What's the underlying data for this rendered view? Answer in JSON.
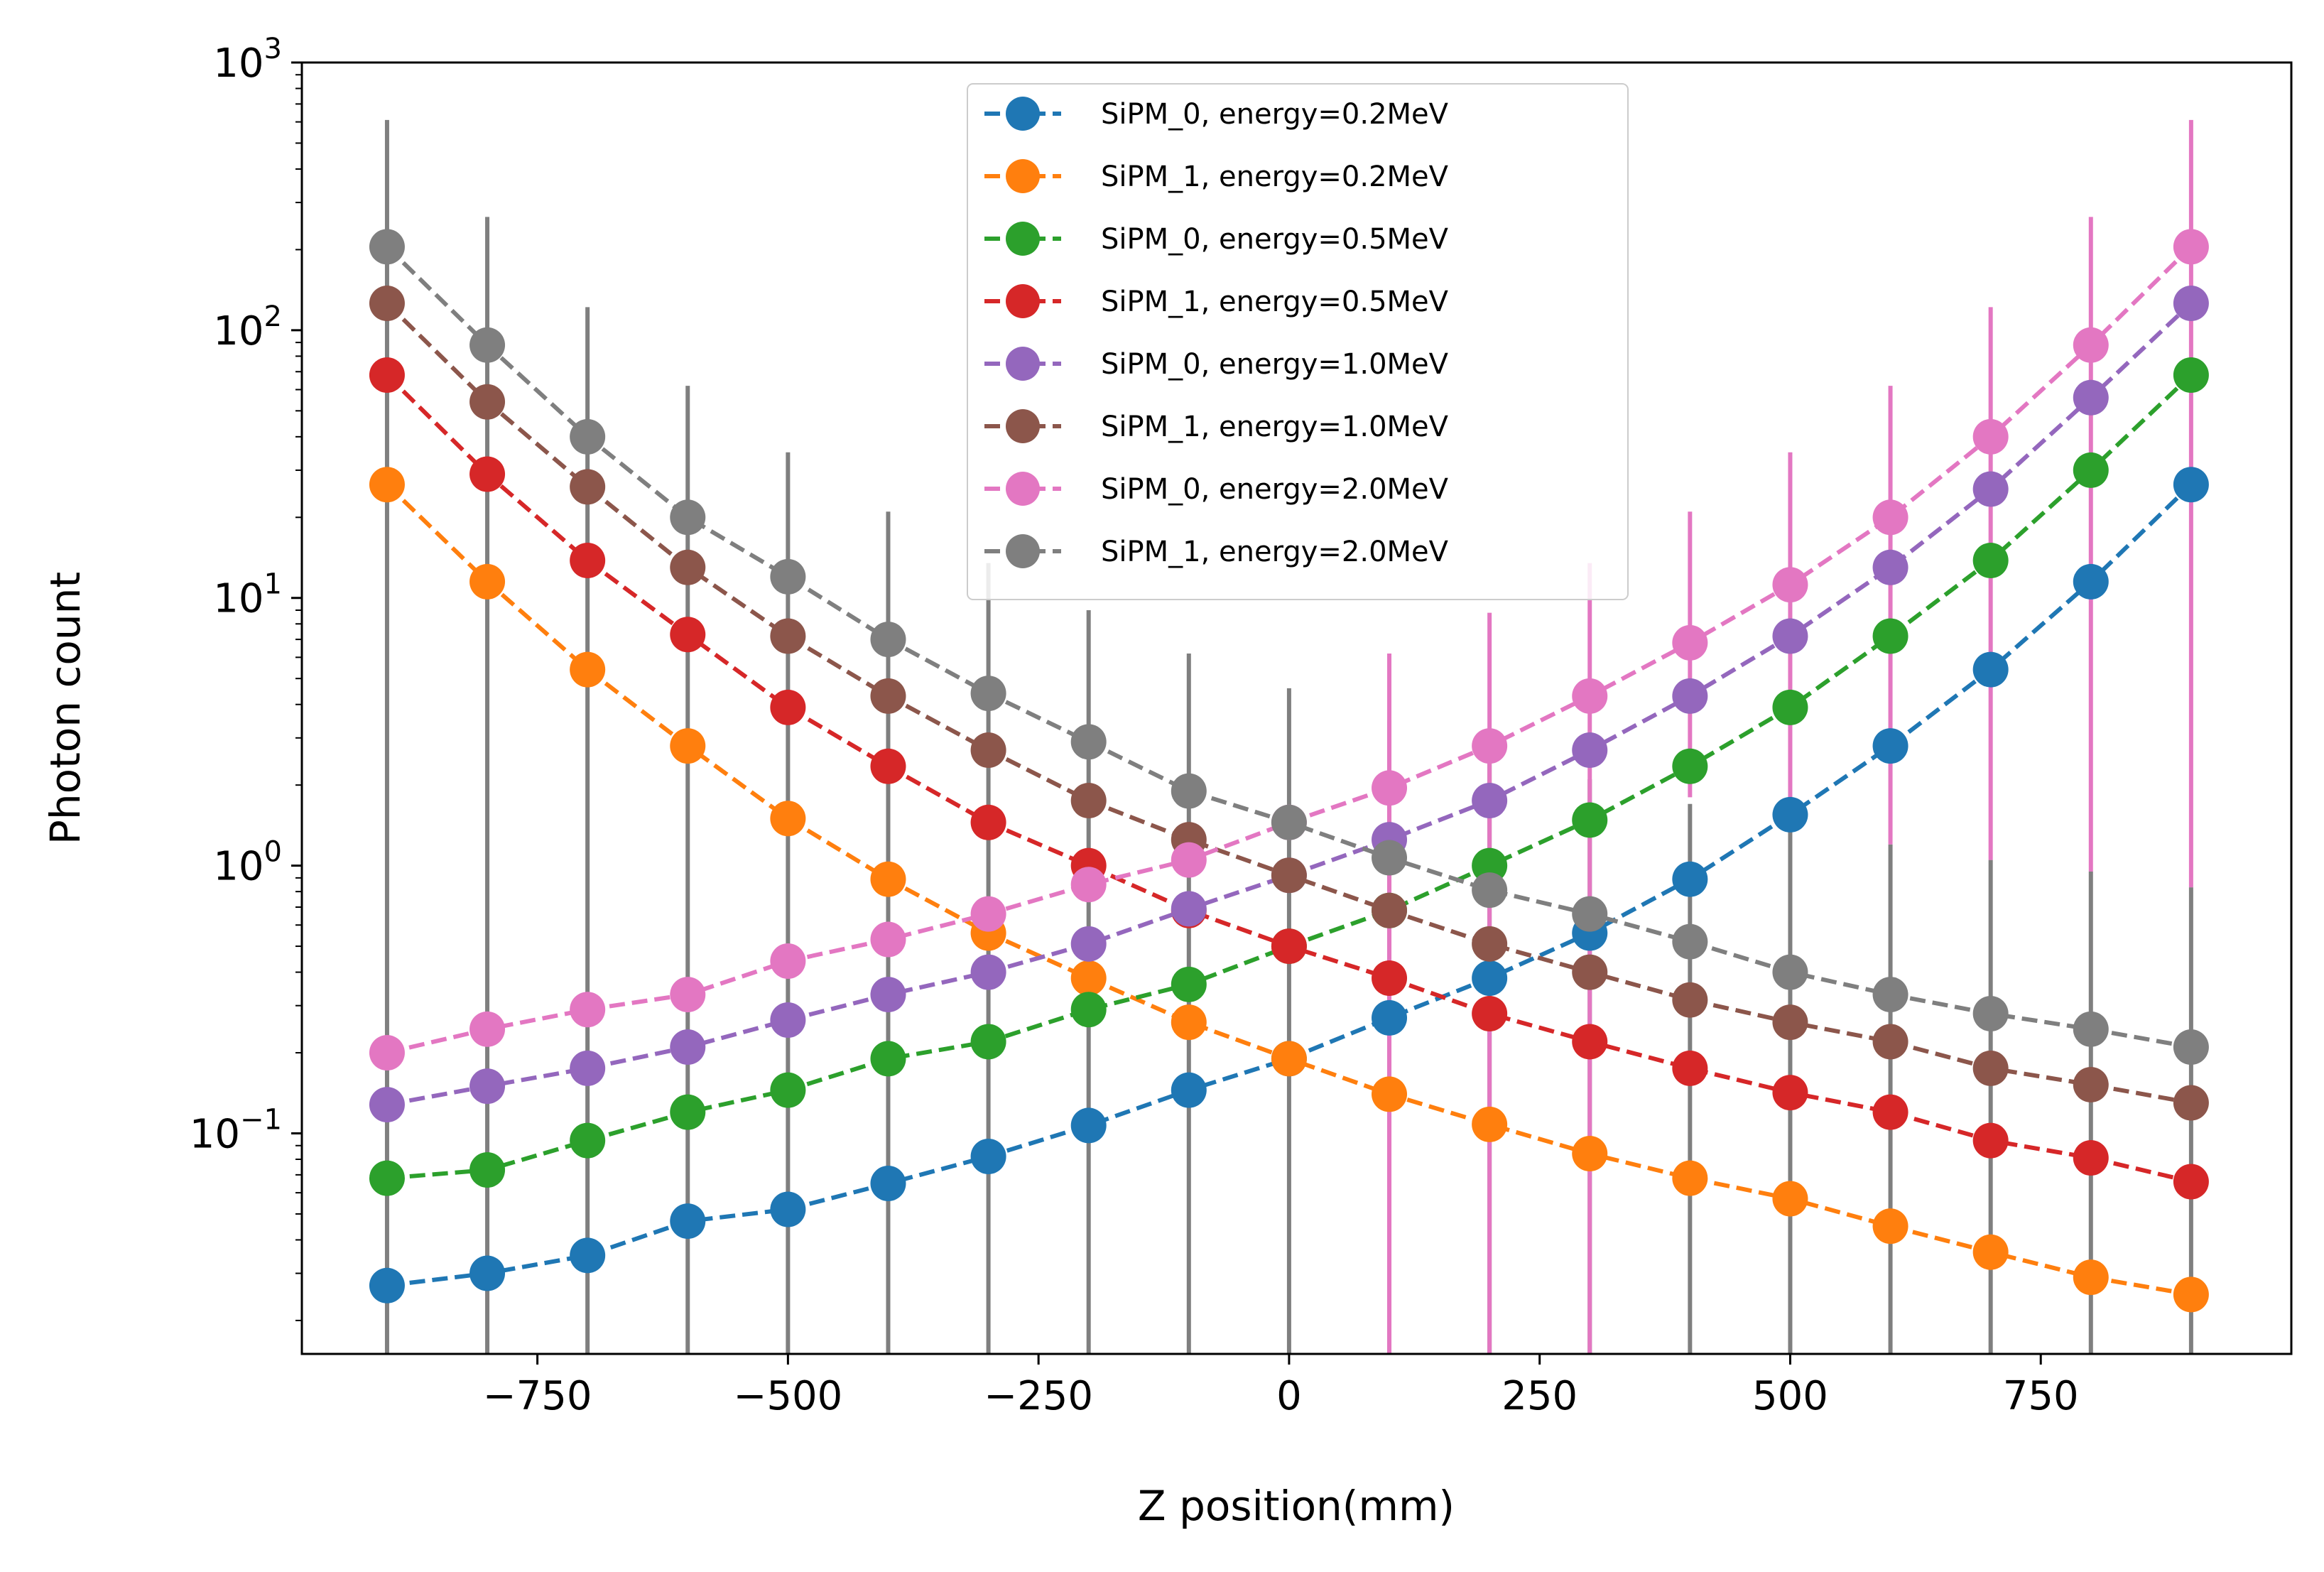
{
  "chart_data": {
    "type": "line",
    "xlabel": "Z position(mm)",
    "ylabel": "Photon count",
    "yscale": "log",
    "xlim": [
      -985,
      1000
    ],
    "ylim": [
      0.015,
      1000
    ],
    "xticks": [
      -750,
      -500,
      -250,
      0,
      250,
      500,
      750
    ],
    "xtick_labels": [
      "−750",
      "−500",
      "−250",
      "0",
      "250",
      "500",
      "750"
    ],
    "yticks": [
      {
        "value": 1000,
        "base": "10",
        "exp": "3"
      },
      {
        "value": 100,
        "base": "10",
        "exp": "2"
      },
      {
        "value": 10,
        "base": "10",
        "exp": "1"
      },
      {
        "value": 1,
        "base": "10",
        "exp": "0"
      },
      {
        "value": 0.1,
        "base": "10",
        "exp": "−1"
      }
    ],
    "grid": false,
    "legend_position": "top-center",
    "line_style": "dashed",
    "marker": "circle",
    "x": [
      -900,
      -800,
      -700,
      -600,
      -500,
      -400,
      -300,
      -200,
      -100,
      0,
      100,
      200,
      300,
      400,
      500,
      600,
      700,
      800,
      900
    ],
    "series": [
      {
        "name": "SiPM_0, energy=0.2MeV",
        "color": "#1f77b4",
        "values": [
          0.027,
          0.03,
          0.035,
          0.047,
          0.052,
          0.065,
          0.082,
          0.107,
          0.145,
          0.19,
          0.27,
          0.38,
          0.56,
          0.89,
          1.55,
          2.8,
          5.4,
          11.5,
          26.5
        ]
      },
      {
        "name": "SiPM_1, energy=0.2MeV",
        "color": "#ff7f0e",
        "values": [
          26.5,
          11.5,
          5.4,
          2.8,
          1.5,
          0.89,
          0.56,
          0.38,
          0.26,
          0.19,
          0.14,
          0.108,
          0.084,
          0.068,
          0.057,
          0.045,
          0.036,
          0.029,
          0.025
        ]
      },
      {
        "name": "SiPM_0, energy=0.5MeV",
        "color": "#2ca02c",
        "values": [
          0.068,
          0.073,
          0.094,
          0.12,
          0.145,
          0.19,
          0.22,
          0.29,
          0.36,
          0.5,
          0.68,
          1.0,
          1.48,
          2.35,
          3.9,
          7.2,
          13.8,
          30,
          68
        ]
      },
      {
        "name": "SiPM_1, energy=0.5MeV",
        "color": "#d62728",
        "values": [
          68,
          29,
          13.8,
          7.3,
          3.9,
          2.35,
          1.45,
          1.0,
          0.68,
          0.5,
          0.38,
          0.28,
          0.22,
          0.175,
          0.142,
          0.12,
          0.094,
          0.081,
          0.066
        ]
      },
      {
        "name": "SiPM_0, energy=1.0MeV",
        "color": "#9467bd",
        "values": [
          0.128,
          0.15,
          0.175,
          0.21,
          0.265,
          0.33,
          0.4,
          0.51,
          0.69,
          0.92,
          1.25,
          1.75,
          2.7,
          4.3,
          7.2,
          13,
          25.5,
          56,
          126
        ]
      },
      {
        "name": "SiPM_1, energy=1.0MeV",
        "color": "#8c564b",
        "values": [
          126,
          54,
          26,
          13,
          7.2,
          4.3,
          2.7,
          1.75,
          1.25,
          0.92,
          0.68,
          0.51,
          0.4,
          0.315,
          0.26,
          0.22,
          0.175,
          0.152,
          0.13
        ]
      },
      {
        "name": "SiPM_0, energy=2.0MeV",
        "color": "#e377c2",
        "values": [
          0.2,
          0.245,
          0.29,
          0.33,
          0.44,
          0.53,
          0.66,
          0.85,
          1.05,
          1.45,
          1.95,
          2.8,
          4.3,
          6.8,
          11.2,
          20,
          40,
          88,
          205
        ]
      },
      {
        "name": "SiPM_1, energy=2.0MeV",
        "color": "#7f7f7f",
        "values": [
          205,
          88,
          40,
          20,
          12,
          7.0,
          4.4,
          2.9,
          1.9,
          1.45,
          1.07,
          0.81,
          0.66,
          0.52,
          0.4,
          0.33,
          0.28,
          0.245,
          0.21
        ]
      }
    ],
    "error_bars": [
      {
        "series": "SiPM_1, energy=2.0MeV",
        "color": "#7f7f7f",
        "upper": [
          610,
          265,
          122,
          62,
          35,
          21,
          13.5,
          9,
          6.2,
          4.6,
          3.5,
          2.6,
          2.1,
          1.7,
          1.4,
          1.2,
          1.05,
          0.95,
          0.83
        ]
      },
      {
        "series": "SiPM_0, energy=2.0MeV",
        "color": "#e377c2",
        "upper": [
          null,
          null,
          null,
          null,
          null,
          null,
          null,
          null,
          null,
          null,
          6.2,
          8.8,
          13.5,
          21,
          35,
          62,
          122,
          265,
          610
        ],
        "lower": [
          null,
          null,
          null,
          null,
          null,
          null,
          null,
          null,
          null,
          null,
          null,
          null,
          null,
          1.8,
          1.4,
          1.2,
          1.05,
          0.95,
          0.83
        ]
      }
    ]
  }
}
